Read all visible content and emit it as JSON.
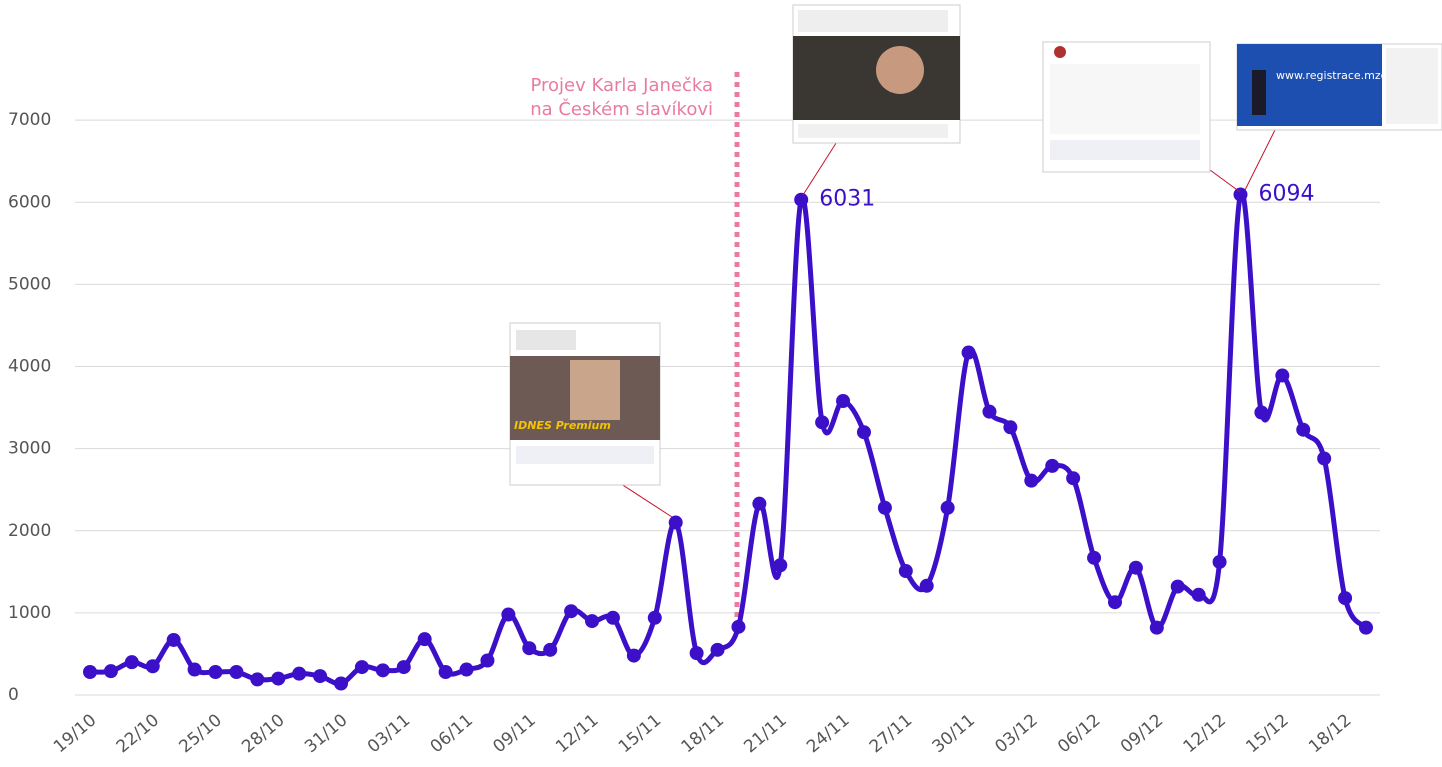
{
  "chart_data": {
    "type": "line",
    "categories": [
      "19/10",
      null,
      null,
      "22/10",
      null,
      null,
      "25/10",
      null,
      null,
      "28/10",
      null,
      null,
      "31/10",
      null,
      null,
      "03/11",
      null,
      null,
      "06/11",
      null,
      null,
      "09/11",
      null,
      null,
      "12/11",
      null,
      null,
      "15/11",
      null,
      null,
      "18/11",
      null,
      null,
      "21/11",
      null,
      null,
      "24/11",
      null,
      null,
      "27/11",
      null,
      null,
      "30/11",
      null,
      null,
      "03/12",
      null,
      null,
      "06/12",
      null,
      null,
      "09/12",
      null,
      null,
      "12/12",
      null,
      null,
      "15/12",
      null,
      null,
      "18/12",
      null
    ],
    "series": [
      {
        "color": "#3b10c8",
        "values": [
          280,
          290,
          400,
          350,
          670,
          310,
          280,
          280,
          190,
          200,
          260,
          230,
          140,
          340,
          300,
          340,
          680,
          280,
          310,
          420,
          980,
          570,
          550,
          1020,
          900,
          940,
          480,
          940,
          2100,
          510,
          550,
          830,
          2330,
          1580,
          6031,
          3320,
          3580,
          3200,
          2280,
          1510,
          1330,
          2280,
          4170,
          3450,
          3260,
          2610,
          2790,
          2640,
          1670,
          1130,
          1550,
          820,
          1320,
          1220,
          1620,
          6094,
          3440,
          3890,
          3230,
          2880,
          1180,
          820
        ]
      }
    ],
    "ylim": [
      0,
      8000
    ],
    "yticks": [
      0,
      1000,
      2000,
      3000,
      4000,
      5000,
      6000,
      7000
    ],
    "grid": true,
    "annotation": {
      "lines": [
        "Projev Karla Janečka",
        "na Českém slavíkovi"
      ],
      "color": "#e97ba3"
    }
  },
  "thumbnails": {
    "idnes": "IDNES Premium",
    "registrace": "www.registrace.mzcr.cz"
  }
}
